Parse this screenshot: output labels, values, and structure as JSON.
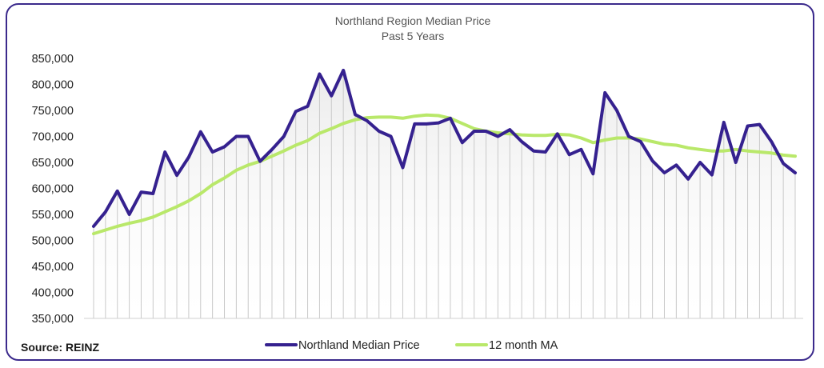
{
  "colors": {
    "series_main": "#35218f",
    "series_ma": "#b9e86a",
    "frame": "#3b2a8c",
    "drop_line": "#c9c9c9",
    "text": "#555555"
  },
  "source": "Source: REINZ",
  "chart_data": {
    "type": "line",
    "title": "Northland Region Median Price",
    "subtitle": "Past 5 Years",
    "xlabel": "",
    "ylabel": "",
    "ylim": [
      350000,
      850000
    ],
    "yticks": [
      "850,000",
      "800,000",
      "750,000",
      "700,000",
      "650,000",
      "600,000",
      "550,000",
      "500,000",
      "450,000",
      "400,000",
      "350,000"
    ],
    "grid": false,
    "legend_position": "bottom",
    "x": [
      1,
      2,
      3,
      4,
      5,
      6,
      7,
      8,
      9,
      10,
      11,
      12,
      13,
      14,
      15,
      16,
      17,
      18,
      19,
      20,
      21,
      22,
      23,
      24,
      25,
      26,
      27,
      28,
      29,
      30,
      31,
      32,
      33,
      34,
      35,
      36,
      37,
      38,
      39,
      40,
      41,
      42,
      43,
      44,
      45,
      46,
      47,
      48,
      49,
      50,
      51,
      52,
      53,
      54,
      55,
      56,
      57,
      58,
      59,
      60
    ],
    "series": [
      {
        "name": "Northland Median Price",
        "values": [
          527000,
          555000,
          595000,
          550000,
          593000,
          590000,
          670000,
          625000,
          660000,
          709000,
          670000,
          680000,
          700000,
          700000,
          652000,
          675000,
          700000,
          748000,
          758000,
          820000,
          778000,
          827000,
          742000,
          730000,
          710000,
          700000,
          640000,
          724000,
          724000,
          726000,
          735000,
          688000,
          710000,
          710000,
          700000,
          713000,
          690000,
          672000,
          670000,
          705000,
          665000,
          675000,
          628000,
          784000,
          750000,
          700000,
          690000,
          653000,
          630000,
          645000,
          618000,
          650000,
          626000,
          727000,
          650000,
          720000,
          723000,
          690000,
          648000,
          630000
        ]
      },
      {
        "name": "12 month MA",
        "values": [
          513000,
          520000,
          527000,
          533000,
          538000,
          545000,
          555000,
          565000,
          576000,
          590000,
          607000,
          620000,
          635000,
          645000,
          652000,
          662000,
          672000,
          683000,
          692000,
          706000,
          715000,
          725000,
          732000,
          736000,
          737000,
          737000,
          735000,
          739000,
          741000,
          740000,
          735000,
          725000,
          715000,
          710000,
          707000,
          705000,
          703000,
          702000,
          702000,
          704000,
          703000,
          697000,
          688000,
          693000,
          697000,
          697000,
          695000,
          690000,
          685000,
          683000,
          678000,
          675000,
          672000,
          672000,
          675000,
          672000,
          670000,
          668000,
          664000,
          662000
        ]
      }
    ]
  }
}
